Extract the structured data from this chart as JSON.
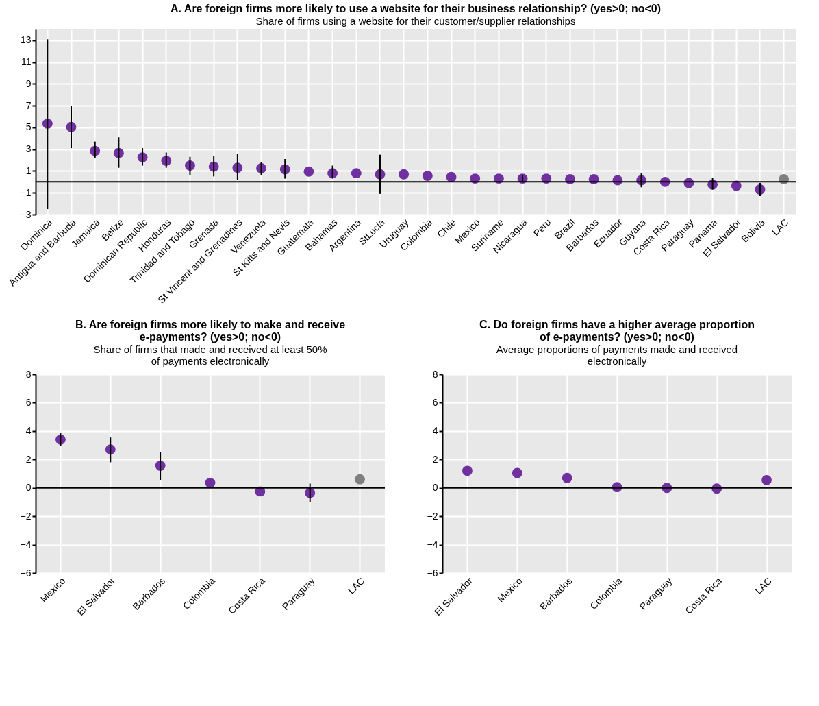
{
  "chart_data": [
    {
      "type": "scatter",
      "title": "A. Are foreign firms more likely to use a website for their business relationship? (yes>0; no<0)",
      "subtitle": "Share of firms  using a website for their customer/supplier relationships",
      "categories": [
        "Dominica",
        "Antigua and Barbuda",
        "Jamaica",
        "Belize",
        "Dominican Republic",
        "Honduras",
        "Trinidad and Tobago",
        "Grenada",
        "St Vincent and Grenadines",
        "Venezuela",
        "St Kitts and Nevis",
        "Guatemala",
        "Bahamas",
        "Argentina",
        "StLucia",
        "Uruguay",
        "Colombia",
        "Chile",
        "Mexico",
        "Suriname",
        "Nicaragua",
        "Peru",
        "Brazil",
        "Barbados",
        "Ecuador",
        "Guyana",
        "Costa Rica",
        "Paraguay",
        "Panama",
        "El Salvador",
        "Bolivia",
        "LAC"
      ],
      "values": [
        5.35,
        5.05,
        2.85,
        2.65,
        2.25,
        1.95,
        1.5,
        1.4,
        1.3,
        1.25,
        1.15,
        0.95,
        0.8,
        0.8,
        0.7,
        0.7,
        0.55,
        0.45,
        0.3,
        0.3,
        0.3,
        0.3,
        0.25,
        0.25,
        0.15,
        0.15,
        0.0,
        -0.1,
        -0.25,
        -0.35,
        -0.7,
        0.25
      ],
      "errors": [
        [
          -2.5,
          13.1
        ],
        [
          3.1,
          7.0
        ],
        [
          2.2,
          3.7
        ],
        [
          1.3,
          4.1
        ],
        [
          1.5,
          3.1
        ],
        [
          1.3,
          2.7
        ],
        [
          0.6,
          2.3
        ],
        [
          0.5,
          2.4
        ],
        [
          0.2,
          2.6
        ],
        [
          0.6,
          1.8
        ],
        [
          0.3,
          2.1
        ],
        null,
        [
          0.3,
          1.5
        ],
        null,
        [
          -1.1,
          2.5
        ],
        null,
        null,
        null,
        null,
        null,
        [
          0.0,
          0.6
        ],
        null,
        null,
        null,
        null,
        [
          -0.5,
          0.8
        ],
        null,
        null,
        [
          -0.7,
          0.4
        ],
        null,
        [
          -1.3,
          -0.1
        ],
        null
      ],
      "colors": [
        "#7030a0",
        "#7030a0",
        "#7030a0",
        "#7030a0",
        "#7030a0",
        "#7030a0",
        "#7030a0",
        "#7030a0",
        "#7030a0",
        "#7030a0",
        "#7030a0",
        "#7030a0",
        "#7030a0",
        "#7030a0",
        "#7030a0",
        "#7030a0",
        "#7030a0",
        "#7030a0",
        "#7030a0",
        "#7030a0",
        "#7030a0",
        "#7030a0",
        "#7030a0",
        "#7030a0",
        "#7030a0",
        "#7030a0",
        "#7030a0",
        "#7030a0",
        "#7030a0",
        "#7030a0",
        "#7030a0",
        "#7f7f7f"
      ],
      "ylim": [
        -3,
        14
      ],
      "yticks": [
        -3,
        -1,
        1,
        3,
        5,
        7,
        9,
        11,
        13
      ],
      "grid": true,
      "marker": "circle",
      "ref_lines": [
        {
          "axis": "y",
          "value": 0,
          "color": "#000000"
        }
      ]
    },
    {
      "type": "scatter",
      "title": "B. Are foreign firms more likely to make and receive e-payments? (yes>0; no<0)",
      "subtitle": "Share of firms that made and received at least 50% of payments electronically",
      "categories": [
        "Mexico",
        "El Salvador",
        "Barbados",
        "Colombia",
        "Costa Rica",
        "Paraguay",
        "LAC"
      ],
      "values": [
        3.4,
        2.7,
        1.55,
        0.35,
        -0.25,
        -0.35,
        0.6
      ],
      "errors": [
        [
          2.95,
          3.85
        ],
        [
          1.8,
          3.55
        ],
        [
          0.55,
          2.5
        ],
        null,
        null,
        [
          -1.0,
          0.3
        ],
        null
      ],
      "colors": [
        "#7030a0",
        "#7030a0",
        "#7030a0",
        "#7030a0",
        "#7030a0",
        "#7030a0",
        "#7f7f7f"
      ],
      "ylim": [
        -6,
        8
      ],
      "yticks": [
        -6,
        -4,
        -2,
        0,
        2,
        4,
        6,
        8
      ],
      "grid": true,
      "marker": "circle",
      "ref_lines": [
        {
          "axis": "y",
          "value": 0,
          "color": "#000000"
        }
      ]
    },
    {
      "type": "scatter",
      "title": "C. Do foreign firms have a higher average proportion of e-payments? (yes>0; no<0)",
      "subtitle": "Average proportions of payments made and received electronically",
      "categories": [
        "El Salvador",
        "Mexico",
        "Barbados",
        "Colombia",
        "Paraguay",
        "Costa Rica",
        "LAC"
      ],
      "values": [
        1.2,
        1.05,
        0.7,
        0.05,
        0.0,
        -0.05,
        0.55
      ],
      "colors": [
        "#7030a0",
        "#7030a0",
        "#7030a0",
        "#7030a0",
        "#7030a0",
        "#7030a0",
        "#7030a0"
      ],
      "ylim": [
        -6,
        8
      ],
      "yticks": [
        -6,
        -4,
        -2,
        0,
        2,
        4,
        6,
        8
      ],
      "grid": true,
      "marker": "circle",
      "ref_lines": [
        {
          "axis": "y",
          "value": 0,
          "color": "#000000"
        }
      ]
    }
  ]
}
